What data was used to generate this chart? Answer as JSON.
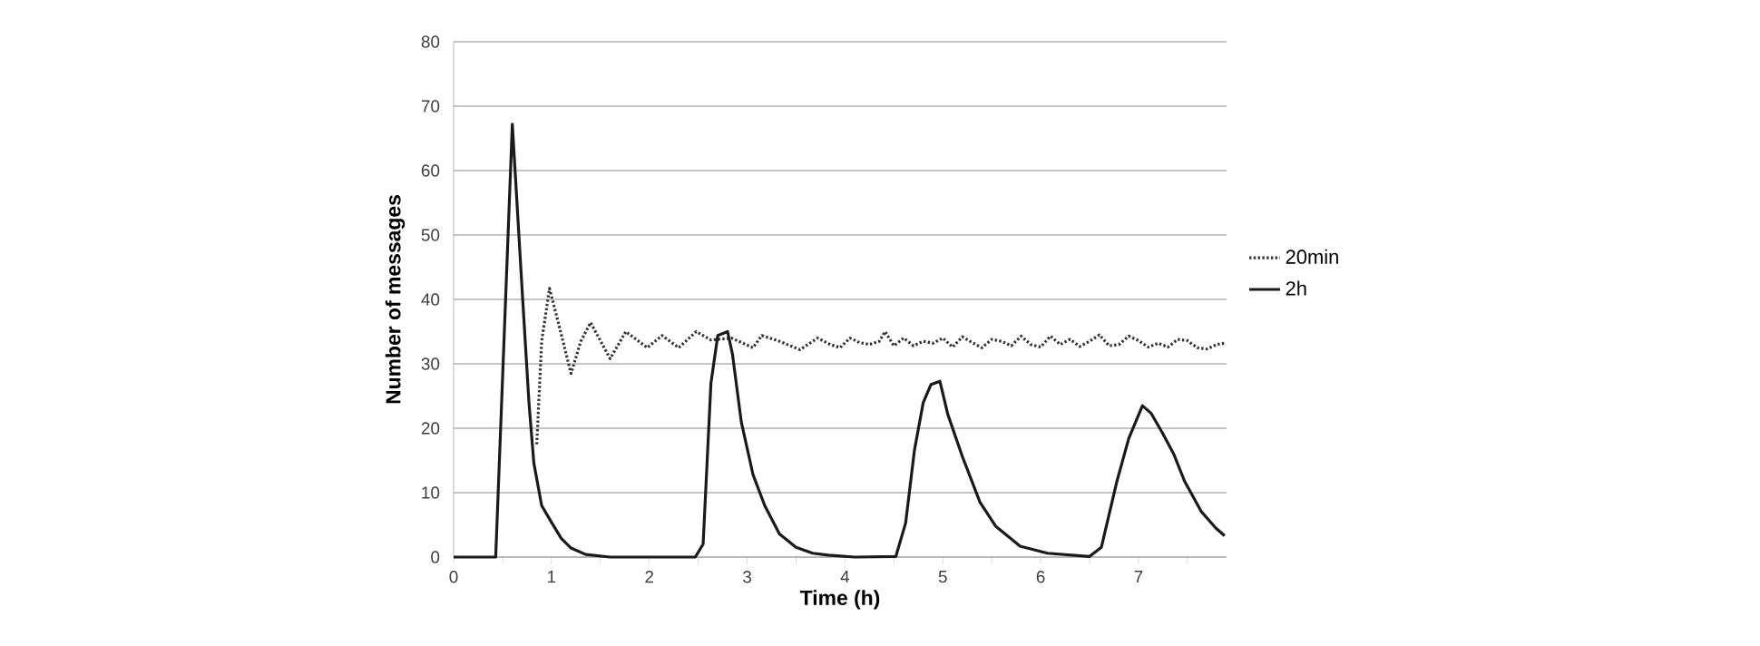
{
  "chart_data": {
    "type": "line",
    "xlabel": "Time (h)",
    "ylabel": "Number of messages",
    "xlim": [
      0,
      7.9
    ],
    "ylim": [
      0,
      80
    ],
    "xticks": [
      0,
      {
        "value": 0.5,
        "label": null
      },
      1,
      {
        "value": 1.5,
        "label": null
      },
      2,
      {
        "value": 2.5,
        "label": null
      },
      3,
      {
        "value": 3.5,
        "label": null
      },
      4,
      {
        "value": 4.5,
        "label": null
      },
      5,
      {
        "value": 5.5,
        "label": null
      },
      6,
      {
        "value": 6.5,
        "label": null
      },
      7,
      {
        "value": 7.5,
        "label": null
      }
    ],
    "yticks": [
      0,
      10,
      20,
      30,
      40,
      50,
      60,
      70,
      80
    ],
    "grid": "y",
    "legend": "right",
    "series": [
      {
        "name": "20min",
        "color": "#333333",
        "line_style": "dotted",
        "x": [
          0.85,
          0.9,
          0.98,
          1.06,
          1.2,
          1.3,
          1.4,
          1.6,
          1.76,
          1.98,
          2.13,
          2.3,
          2.48,
          2.63,
          2.84,
          3.06,
          3.15,
          3.33,
          3.54,
          3.72,
          3.85,
          3.95,
          4.05,
          4.15,
          4.25,
          4.35,
          4.41,
          4.5,
          4.6,
          4.7,
          4.8,
          4.9,
          5.0,
          5.1,
          5.2,
          5.3,
          5.4,
          5.5,
          5.6,
          5.7,
          5.8,
          5.9,
          6.0,
          6.1,
          6.2,
          6.3,
          6.4,
          6.5,
          6.6,
          6.7,
          6.8,
          6.9,
          7.0,
          7.1,
          7.2,
          7.3,
          7.4,
          7.5,
          7.6,
          7.7,
          7.8,
          7.88
        ],
        "values": [
          17.5,
          33.5,
          41.7,
          37,
          28.5,
          33.5,
          36.4,
          30.8,
          35,
          32.5,
          34.4,
          32.5,
          35,
          33.7,
          34,
          32.5,
          34.4,
          33.5,
          32.2,
          34,
          33,
          32.5,
          34,
          33.3,
          33,
          33.5,
          35,
          32.8,
          34,
          32.8,
          33.5,
          33.2,
          34,
          32.6,
          34.2,
          33.3,
          32.5,
          33.8,
          33.5,
          32.8,
          34.3,
          33,
          32.6,
          34.3,
          33,
          33.8,
          32.7,
          33.5,
          34.5,
          32.8,
          33,
          34.3,
          33.6,
          32.6,
          33.2,
          32.6,
          33.8,
          33.6,
          32.5,
          32.3,
          33,
          33.2
        ]
      },
      {
        "name": "2h",
        "color": "#1a1a1a",
        "line_style": "solid",
        "x": [
          0,
          0.2,
          0.43,
          0.6,
          0.71,
          0.77,
          0.82,
          0.9,
          1.0,
          1.1,
          1.2,
          1.35,
          1.6,
          2.0,
          2.47,
          2.55,
          2.63,
          2.7,
          2.8,
          2.85,
          2.94,
          3.06,
          3.18,
          3.33,
          3.5,
          3.67,
          3.83,
          4.1,
          4.52,
          4.62,
          4.71,
          4.8,
          4.88,
          4.97,
          5.05,
          5.2,
          5.38,
          5.54,
          5.79,
          6.07,
          6.5,
          6.62,
          6.78,
          6.9,
          7.04,
          7.13,
          7.24,
          7.36,
          7.47,
          7.64,
          7.79,
          7.88
        ],
        "values": [
          0,
          0,
          0,
          67.2,
          39,
          24,
          14.6,
          8,
          5.4,
          2.9,
          1.4,
          0.4,
          0,
          0,
          0,
          2,
          27,
          34.4,
          35,
          31.5,
          21,
          12.8,
          8,
          3.6,
          1.5,
          0.6,
          0.3,
          0,
          0.1,
          5.3,
          16.6,
          24,
          26.8,
          27.3,
          22.2,
          15.6,
          8.5,
          4.8,
          1.7,
          0.6,
          0.1,
          1.5,
          11.8,
          18.4,
          23.5,
          22.3,
          19.4,
          16,
          11.8,
          7.1,
          4.5,
          3.3
        ]
      }
    ]
  }
}
